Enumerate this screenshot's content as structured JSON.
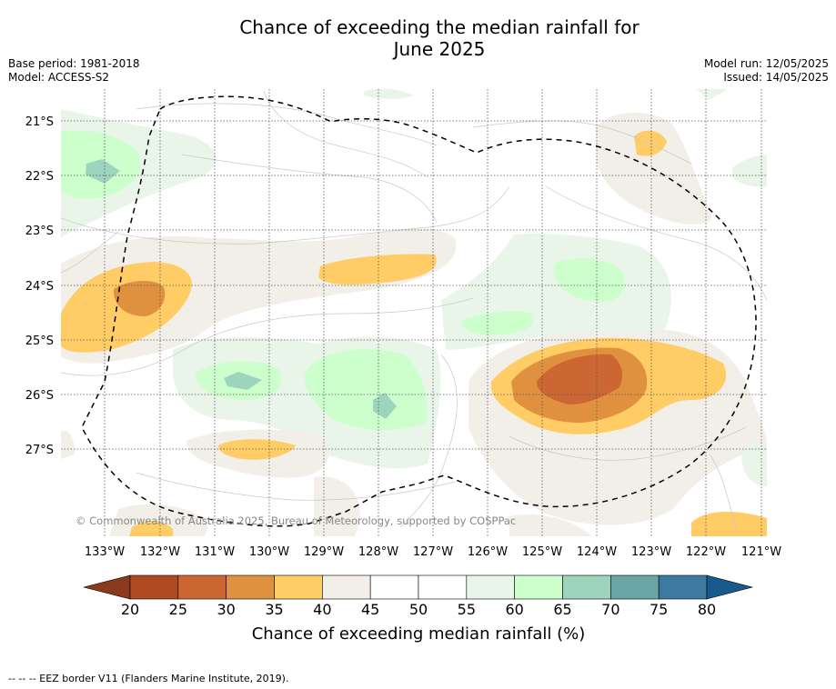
{
  "title_line1": "Chance of exceeding the median rainfall for",
  "title_line2": "June 2025",
  "base_period": "Base period: 1981-2018",
  "model": "Model: ACCESS-S2",
  "model_run": "Model run: 12/05/2025",
  "issued": "Issued: 14/05/2025",
  "copyright": "© Commonwealth of Australia 2025, Bureau of Meteorology, supported by COSPPac",
  "lat_labels": [
    "21°S",
    "22°S",
    "23°S",
    "24°S",
    "25°S",
    "26°S",
    "27°S"
  ],
  "lon_labels": [
    "133°W",
    "132°W",
    "131°W",
    "130°W",
    "129°W",
    "128°W",
    "127°W",
    "126°W",
    "125°W",
    "124°W",
    "123°W",
    "122°W",
    "121°W"
  ],
  "colorbar": {
    "ticks": [
      "20",
      "25",
      "30",
      "35",
      "40",
      "45",
      "50",
      "55",
      "60",
      "65",
      "70",
      "75",
      "80"
    ],
    "colors": [
      "#b04a25",
      "#cc6633",
      "#e0913f",
      "#ffcc66",
      "#f2eee8",
      "#ffffff",
      "#ffffff",
      "#e8f5e8",
      "#ccffcc",
      "#9dd4bd",
      "#6aa6a6",
      "#3d7aa0"
    ],
    "low_extend_color": "#8b3a1e",
    "high_extend_color": "#185a8c",
    "label": "Chance of exceeding median rainfall (%)"
  },
  "legend_line": "--  --  -- EEZ border V11 (Flanders Marine Institute, 2019)."
}
